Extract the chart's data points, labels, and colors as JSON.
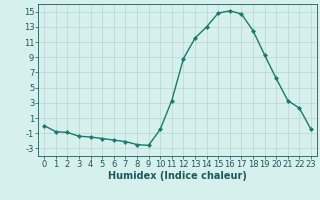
{
  "x": [
    0,
    1,
    2,
    3,
    4,
    5,
    6,
    7,
    8,
    9,
    10,
    11,
    12,
    13,
    14,
    15,
    16,
    17,
    18,
    19,
    20,
    21,
    22,
    23
  ],
  "y": [
    0.0,
    -0.8,
    -0.9,
    -1.4,
    -1.5,
    -1.7,
    -1.9,
    -2.1,
    -2.5,
    -2.6,
    -0.5,
    3.3,
    8.8,
    11.5,
    13.0,
    14.8,
    15.1,
    14.7,
    12.5,
    9.3,
    6.2,
    3.3,
    2.3,
    -0.5
  ],
  "line_color": "#1a7a6e",
  "marker": "D",
  "marker_size": 2,
  "bg_color": "#d6f0ee",
  "grid_color": "#b8d4d0",
  "tick_color": "#1a5a5a",
  "xlabel": "Humidex (Indice chaleur)",
  "xlabel_fontsize": 7,
  "xlim": [
    -0.5,
    23.5
  ],
  "ylim": [
    -4,
    16
  ],
  "yticks": [
    -3,
    -1,
    1,
    3,
    5,
    7,
    9,
    11,
    13,
    15
  ],
  "xticks": [
    0,
    1,
    2,
    3,
    4,
    5,
    6,
    7,
    8,
    9,
    10,
    11,
    12,
    13,
    14,
    15,
    16,
    17,
    18,
    19,
    20,
    21,
    22,
    23
  ],
  "tick_fontsize": 6,
  "line_width": 1.0
}
